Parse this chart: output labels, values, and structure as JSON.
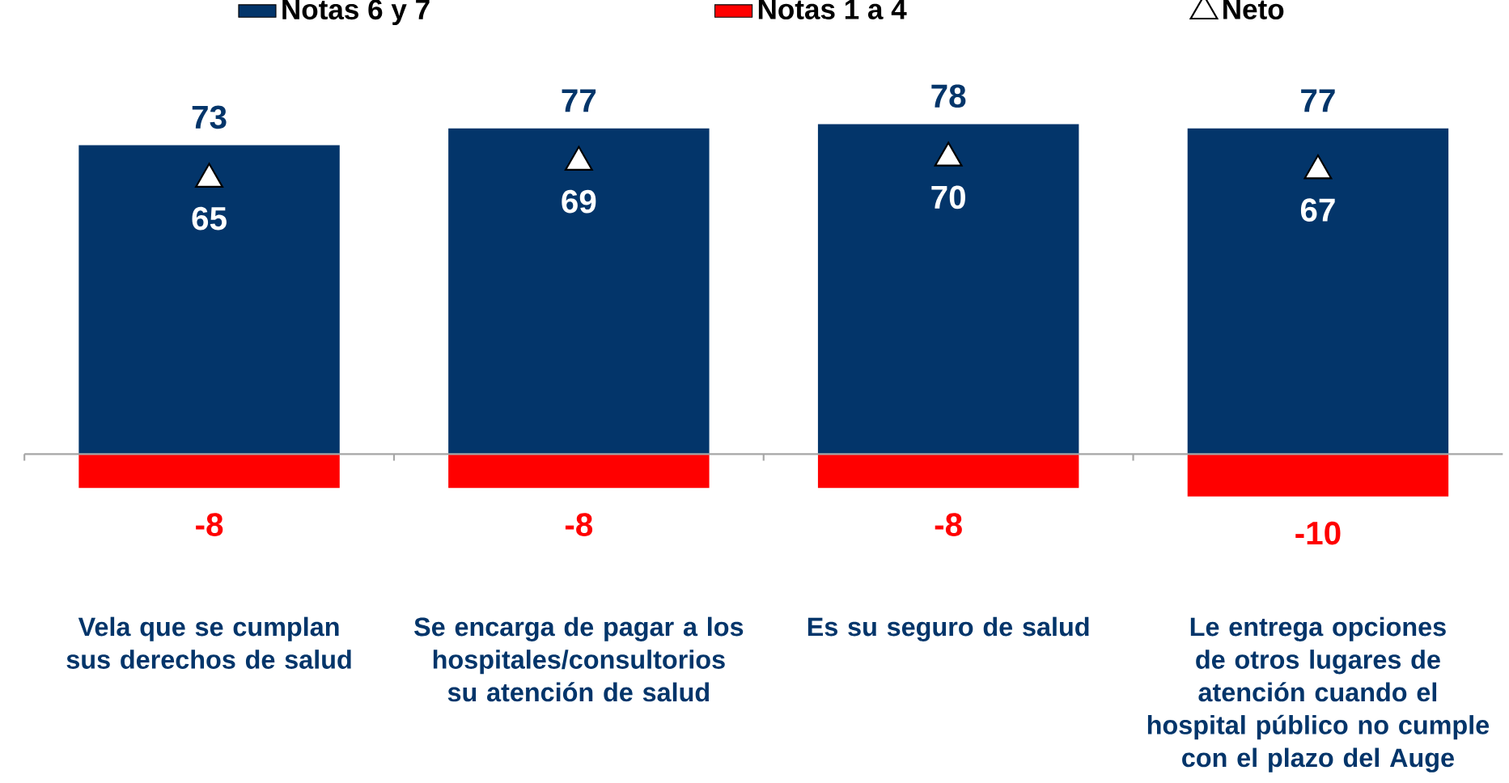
{
  "chart_data": {
    "type": "bar",
    "stacked": true,
    "data_labels": true,
    "legend": "top",
    "categories": [
      "Vela que se cumplan sus derechos de salud",
      "Se encarga de pagar a los hospitales/consultorios su atención de salud",
      "Es su seguro de salud",
      "Le entrega opciones de otros lugares de atención cuando el hospital público no cumple con el plazo del Auge"
    ],
    "series": [
      {
        "name": "Notas 6 y 7",
        "color": "#03356a",
        "values": [
          73,
          77,
          78,
          77
        ]
      },
      {
        "name": "Notas 1 a 4",
        "color": "#ff0000",
        "values": [
          -8,
          -8,
          -8,
          -10
        ]
      },
      {
        "name": "Neto",
        "type": "scatter",
        "marker": "triangle",
        "color": "#ffffff",
        "values": [
          65,
          69,
          70,
          67
        ]
      }
    ]
  }
}
